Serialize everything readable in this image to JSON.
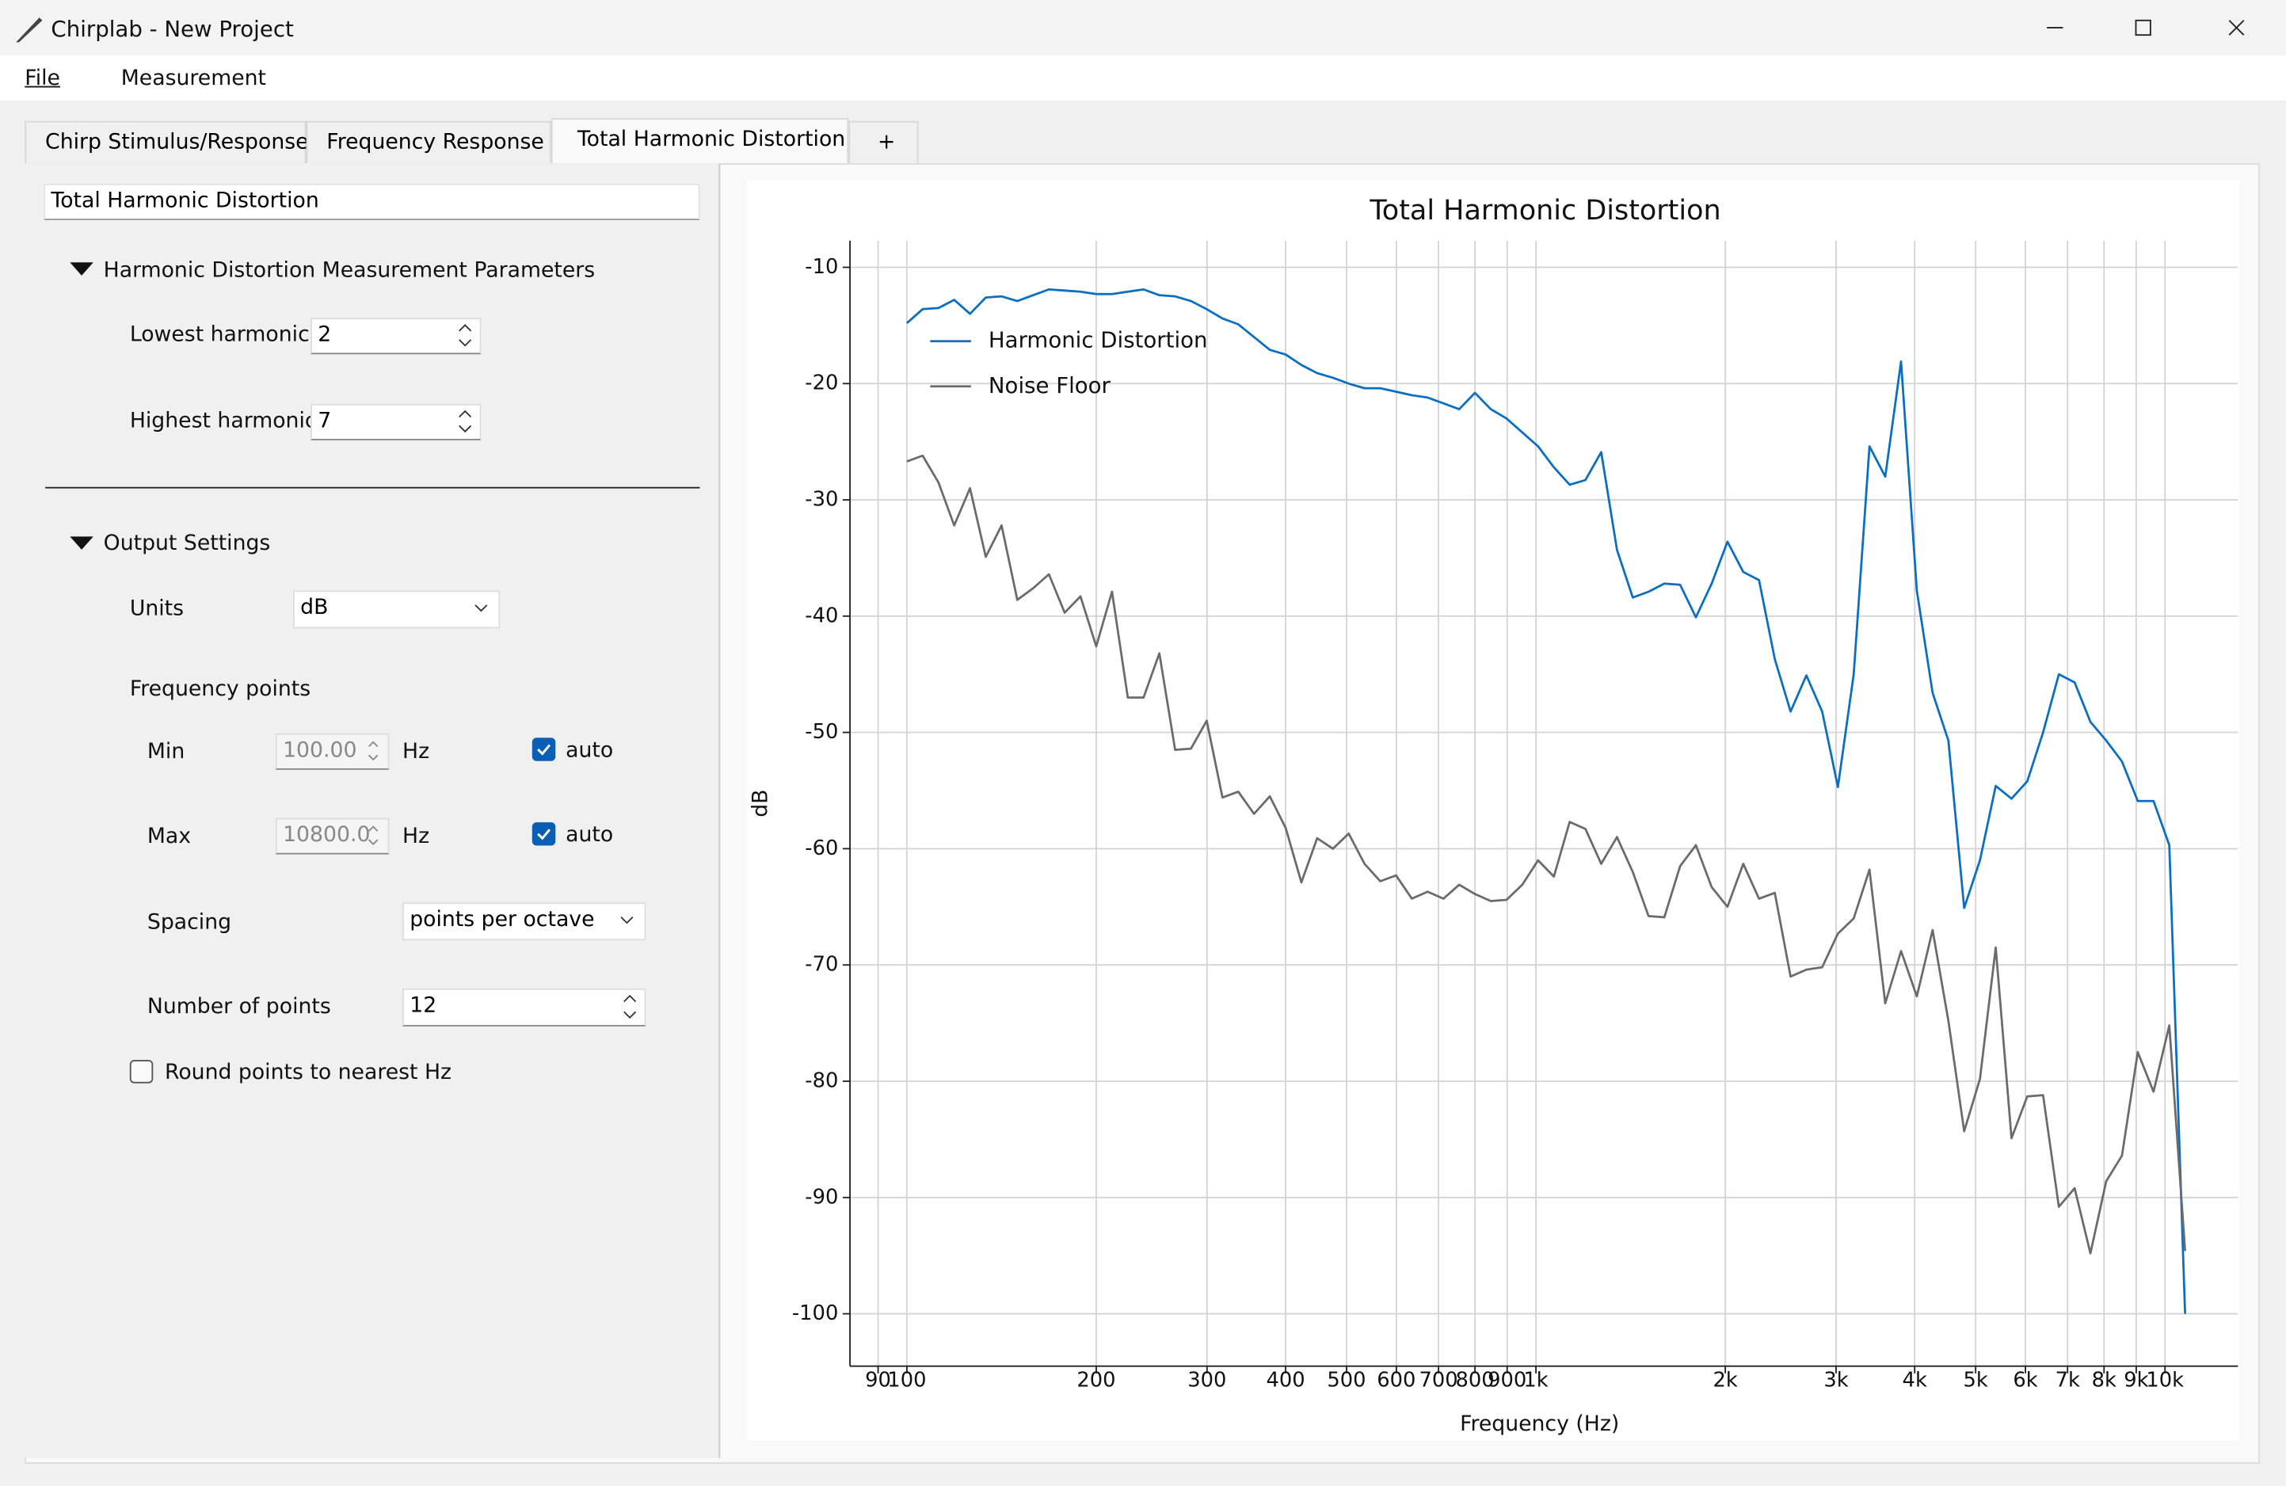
{
  "window": {
    "title": "Chirplab - New Project"
  },
  "menu": [
    "File",
    "Measurement"
  ],
  "tabs": {
    "labels": [
      "Chirp Stimulus/Response",
      "Frequency Response",
      "Total Harmonic Distortion",
      "+"
    ],
    "active": 2
  },
  "panel": {
    "name": "Total Harmonic Distortion",
    "harmonics": {
      "title": "Harmonic Distortion Measurement Parameters",
      "lowest": {
        "label": "Lowest harmonic",
        "value": "2"
      },
      "highest": {
        "label": "Highest harmonic",
        "value": "7"
      }
    },
    "output": {
      "title": "Output Settings",
      "units": {
        "label": "Units",
        "value": "dB"
      },
      "frequency_points": "Frequency points",
      "min": {
        "label": "Min",
        "value": "100.00",
        "unit": "Hz",
        "auto": "auto",
        "checked": true
      },
      "max": {
        "label": "Max",
        "value": "10800.0",
        "unit": "Hz",
        "auto": "auto",
        "checked": true
      },
      "spacing": {
        "label": "Spacing",
        "value": "points per octave"
      },
      "points": {
        "label": "Number of points",
        "value": "12"
      },
      "round": {
        "label": "Round points to nearest Hz",
        "checked": false
      }
    }
  },
  "chart_data": {
    "type": "line",
    "title": "Total Harmonic Distortion",
    "x_label": "Frequency (Hz)",
    "y_label": "dB",
    "log_x": true,
    "grid": true,
    "legend": "upper left",
    "xlim": [
      81.2,
      13060
    ],
    "ylim": [
      -104.5,
      -7.7
    ],
    "xticks": [
      90,
      100,
      200,
      300,
      400,
      500,
      600,
      700,
      800,
      900,
      {
        "value": 1000,
        "label": "1k"
      },
      {
        "value": 2000,
        "label": "2k"
      },
      {
        "value": 3000,
        "label": "3k"
      },
      {
        "value": 4000,
        "label": "4k"
      },
      {
        "value": 5000,
        "label": "5k"
      },
      {
        "value": 6000,
        "label": "6k"
      },
      {
        "value": 7000,
        "label": "7k"
      },
      {
        "value": 8000,
        "label": "8k"
      },
      {
        "value": 9000,
        "label": "9k"
      },
      {
        "value": 10000,
        "label": "10k"
      }
    ],
    "yticks": [
      -100,
      -90,
      -80,
      -70,
      -60,
      -50,
      -40,
      -30,
      -20,
      -10
    ],
    "x": [
      100,
      105.95,
      112.25,
      118.92,
      125.99,
      133.48,
      141.42,
      149.83,
      158.74,
      168.18,
      178.18,
      188.78,
      200,
      211.89,
      224.49,
      237.84,
      251.98,
      266.97,
      282.84,
      299.66,
      317.48,
      336.36,
      356.36,
      377.55,
      400,
      423.78,
      448.98,
      475.68,
      503.97,
      533.93,
      565.69,
      599.32,
      634.96,
      672.72,
      712.71,
      755.1,
      800,
      847.57,
      897.96,
      951.37,
      1007.9,
      1067.9,
      1131.4,
      1198.6,
      1269.9,
      1345.4,
      1425.4,
      1510.2,
      1600,
      1695.1,
      1795.9,
      1902.7,
      2015.9,
      2135.8,
      2262.7,
      2397.3,
      2539.8,
      2690.9,
      2850.9,
      3020.4,
      3200,
      3390.3,
      3591.8,
      3805.5,
      4031.7,
      4271.4,
      4525.5,
      4794.6,
      5079.7,
      5381.7,
      5701.8,
      6040.7,
      6400,
      6780.6,
      7183.7,
      7610.9,
      8063.4,
      8542.9,
      9051,
      9589.2,
      10159,
      10763
    ],
    "series": [
      {
        "name": "Harmonic Distortion",
        "color": "#0a6fc2",
        "values": [
          -14.8,
          -13.6,
          -13.5,
          -12.8,
          -14.0,
          -12.6,
          -12.5,
          -12.9,
          -12.4,
          -11.9,
          -12.0,
          -12.1,
          -12.3,
          -12.3,
          -12.1,
          -11.9,
          -12.4,
          -12.5,
          -12.9,
          -13.6,
          -14.4,
          -14.9,
          -16.0,
          -17.1,
          -17.5,
          -18.4,
          -19.1,
          -19.5,
          -20.0,
          -20.4,
          -20.4,
          -20.7,
          -21.0,
          -21.2,
          -21.7,
          -22.2,
          -20.8,
          -22.2,
          -23.0,
          -24.2,
          -25.4,
          -27.2,
          -28.7,
          -28.3,
          -25.9,
          -34.3,
          -38.4,
          -37.9,
          -37.2,
          -37.3,
          -40.1,
          -37.2,
          -33.6,
          -36.2,
          -36.9,
          -43.7,
          -48.2,
          -45.1,
          -48.2,
          -54.7,
          -45.0,
          -25.4,
          -28.0,
          -18.1,
          -37.8,
          -46.6,
          -50.7,
          -65.1,
          -61.0,
          -54.6,
          -55.7,
          -54.2,
          -50.0,
          -45.0,
          -45.7,
          -49.1,
          -50.7,
          -52.5,
          -55.9,
          -55.9,
          -59.7,
          -100
        ]
      },
      {
        "name": "Noise Floor",
        "color": "#6b6b6b",
        "values": [
          -26.7,
          -26.2,
          -28.5,
          -32.2,
          -29.0,
          -34.9,
          -32.2,
          -38.6,
          -37.6,
          -36.4,
          -39.7,
          -38.3,
          -42.6,
          -37.9,
          -47.0,
          -47.0,
          -43.2,
          -51.5,
          -51.4,
          -49.0,
          -55.6,
          -55.1,
          -57.0,
          -55.5,
          -58.2,
          -62.9,
          -59.1,
          -60.0,
          -58.7,
          -61.3,
          -62.8,
          -62.3,
          -64.3,
          -63.7,
          -64.3,
          -63.1,
          -63.9,
          -64.5,
          -64.4,
          -63.1,
          -61.0,
          -62.4,
          -57.7,
          -58.3,
          -61.3,
          -59.0,
          -62.0,
          -65.8,
          -65.9,
          -61.5,
          -59.7,
          -63.3,
          -65.0,
          -61.3,
          -64.3,
          -63.8,
          -71.0,
          -70.4,
          -70.2,
          -67.3,
          -66.0,
          -61.8,
          -73.3,
          -68.8,
          -72.7,
          -67.0,
          -74.8,
          -84.3,
          -79.8,
          -68.5,
          -84.9,
          -81.3,
          -81.2,
          -90.8,
          -89.2,
          -94.8,
          -88.6,
          -86.4,
          -77.5,
          -80.9,
          -75.2,
          -94.6
        ]
      }
    ]
  }
}
